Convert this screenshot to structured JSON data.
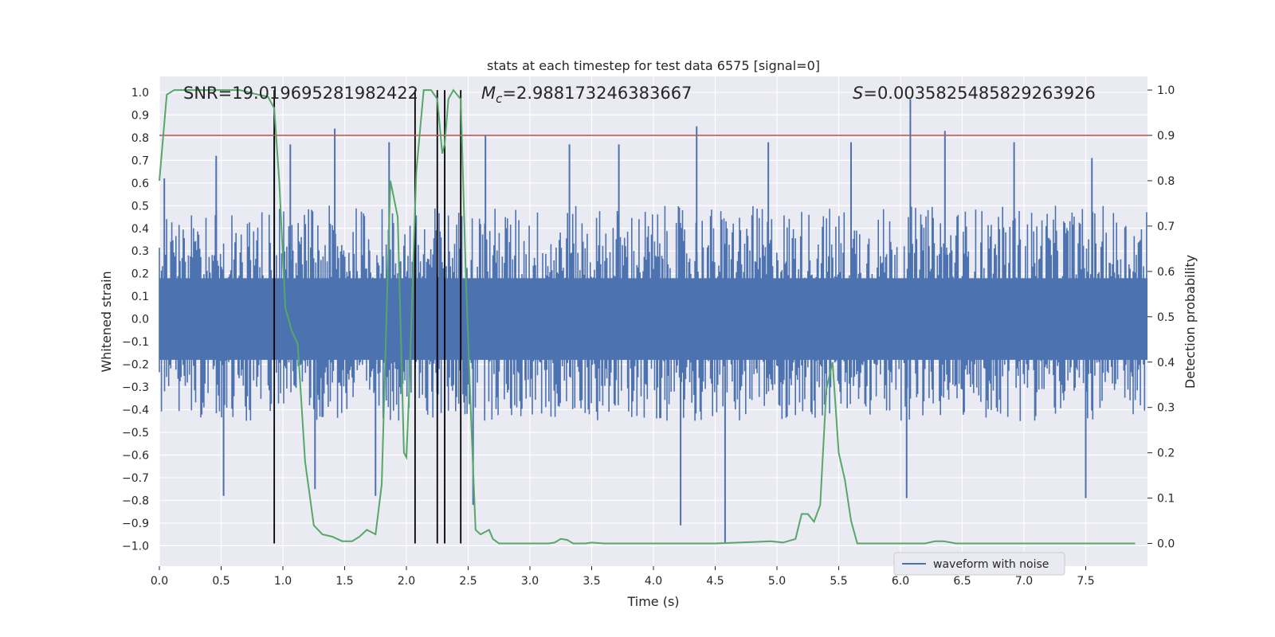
{
  "chart_data": {
    "type": "line",
    "title": "stats at each timestep for test data 6575 [signal=0]",
    "xlabel": "Time (s)",
    "ylabel_left": "Whitened strain",
    "ylabel_right": "Detection probability",
    "xlim": [
      0.0,
      8.0
    ],
    "ylim_left": [
      -1.09,
      1.07
    ],
    "ylim_right": [
      -0.05,
      1.03
    ],
    "x_ticks": [
      "0.0",
      "0.5",
      "1.0",
      "1.5",
      "2.0",
      "2.5",
      "3.0",
      "3.5",
      "4.0",
      "4.5",
      "5.0",
      "5.5",
      "6.0",
      "6.5",
      "7.0",
      "7.5"
    ],
    "y_ticks_left": [
      "1.0",
      "0.9",
      "0.8",
      "0.7",
      "0.6",
      "0.5",
      "0.4",
      "0.3",
      "0.2",
      "0.1",
      "0.0",
      "-0.1",
      "-0.2",
      "-0.3",
      "-0.4",
      "-0.5",
      "-0.6",
      "-0.7",
      "-0.8",
      "-0.9",
      "-1.0"
    ],
    "y_ticks_right": [
      "1.0",
      "0.9",
      "0.8",
      "0.7",
      "0.6",
      "0.5",
      "0.4",
      "0.3",
      "0.2",
      "0.1",
      "0.0"
    ],
    "annotations": {
      "snr": "SNR=19.019695281982422",
      "mc_symbol": "M",
      "mc_sub": "c",
      "mc_value": "=2.988173246383667",
      "s_symbol": "S",
      "s_value": "=0.0035825485829263926"
    },
    "threshold": 0.9,
    "detection_lines_s": [
      0.93,
      2.07,
      2.25,
      2.31,
      2.44
    ],
    "waveform": {
      "name": "waveform with noise",
      "typical_range": [
        -0.45,
        0.5
      ],
      "spikes": [
        {
          "t": 0.04,
          "v": 0.62
        },
        {
          "t": 0.46,
          "v": 0.72
        },
        {
          "t": 0.52,
          "v": -0.78
        },
        {
          "t": 0.93,
          "v": 0.82
        },
        {
          "t": 1.06,
          "v": 0.77
        },
        {
          "t": 1.26,
          "v": -0.75
        },
        {
          "t": 1.42,
          "v": 0.84
        },
        {
          "t": 1.75,
          "v": -0.78
        },
        {
          "t": 1.86,
          "v": 0.78
        },
        {
          "t": 2.64,
          "v": 0.81
        },
        {
          "t": 2.54,
          "v": -0.82
        },
        {
          "t": 3.32,
          "v": 0.77
        },
        {
          "t": 3.72,
          "v": 0.77
        },
        {
          "t": 4.22,
          "v": -0.91
        },
        {
          "t": 4.35,
          "v": 0.85
        },
        {
          "t": 4.58,
          "v": -0.99
        },
        {
          "t": 4.93,
          "v": 0.78
        },
        {
          "t": 5.6,
          "v": 0.78
        },
        {
          "t": 6.08,
          "v": 0.97
        },
        {
          "t": 6.36,
          "v": 0.83
        },
        {
          "t": 6.05,
          "v": -0.79
        },
        {
          "t": 6.92,
          "v": 0.78
        },
        {
          "t": 7.5,
          "v": -0.79
        },
        {
          "t": 7.55,
          "v": 0.71
        }
      ]
    },
    "detection_probability": {
      "name": "detection probability",
      "t": [
        0.0,
        0.06,
        0.12,
        0.2,
        0.3,
        0.5,
        0.65,
        0.8,
        0.88,
        0.93,
        0.97,
        1.02,
        1.07,
        1.12,
        1.18,
        1.25,
        1.32,
        1.4,
        1.48,
        1.56,
        1.62,
        1.68,
        1.75,
        1.8,
        1.87,
        1.93,
        1.98,
        2.0,
        2.02,
        2.08,
        2.14,
        2.2,
        2.25,
        2.29,
        2.31,
        2.34,
        2.38,
        2.44,
        2.48,
        2.52,
        2.56,
        2.6,
        2.67,
        2.7,
        2.75,
        2.8,
        2.87,
        2.95,
        3.05,
        3.15,
        3.2,
        3.25,
        3.3,
        3.35,
        3.45,
        3.5,
        3.6,
        3.8,
        4.0,
        4.2,
        4.5,
        4.8,
        4.95,
        5.05,
        5.15,
        5.2,
        5.25,
        5.3,
        5.35,
        5.4,
        5.45,
        5.5,
        5.55,
        5.6,
        5.65,
        5.7,
        5.75,
        5.8,
        5.9,
        6.1,
        6.2,
        6.28,
        6.35,
        6.45,
        6.6,
        7.0,
        7.2,
        7.4,
        7.6,
        7.9
      ],
      "p": [
        0.8,
        0.99,
        1.0,
        1.0,
        1.0,
        1.0,
        1.0,
        0.99,
        0.985,
        0.96,
        0.8,
        0.52,
        0.47,
        0.44,
        0.18,
        0.04,
        0.02,
        0.015,
        0.005,
        0.005,
        0.015,
        0.03,
        0.02,
        0.13,
        0.8,
        0.72,
        0.2,
        0.19,
        0.32,
        0.82,
        1.0,
        1.0,
        0.98,
        0.86,
        0.88,
        0.98,
        1.0,
        0.98,
        0.6,
        0.3,
        0.03,
        0.02,
        0.03,
        0.01,
        0.0,
        0.0,
        0.0,
        0.0,
        0.0,
        0.0,
        0.002,
        0.01,
        0.008,
        0.0,
        0.0,
        0.002,
        0.0,
        0.0,
        0.0,
        0.0,
        0.0,
        0.003,
        0.005,
        0.002,
        0.01,
        0.065,
        0.065,
        0.048,
        0.085,
        0.34,
        0.4,
        0.2,
        0.14,
        0.05,
        0.0,
        0.0,
        0.0,
        0.0,
        0.0,
        0.0,
        0.0,
        0.005,
        0.005,
        0.0,
        0.0,
        0.0,
        0.0,
        0.0,
        0.0,
        0.0
      ]
    },
    "legend": {
      "label": "waveform with noise",
      "location": "lower-right"
    },
    "colors": {
      "background": "#eaeaf2",
      "grid": "#ffffff",
      "waveform": "#4c72b0",
      "probability": "#55a868",
      "threshold": "#c44e52",
      "detection_lines": "#000000",
      "text": "#262626"
    }
  }
}
